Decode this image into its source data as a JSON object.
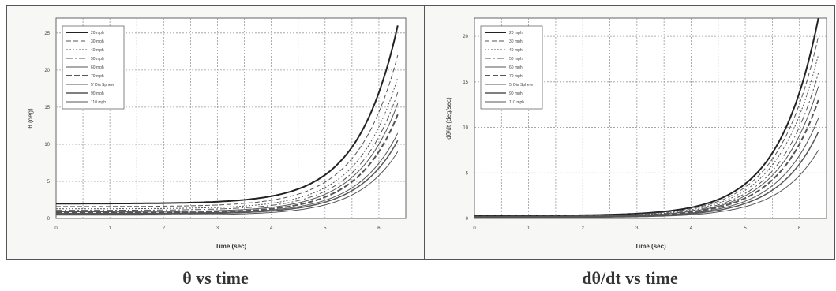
{
  "chart_data": [
    {
      "type": "line",
      "caption": "θ vs time",
      "xlabel": "Time (sec)",
      "ylabel": "θ (deg)",
      "xlim": [
        0,
        6.5
      ],
      "ylim": [
        0,
        27
      ],
      "xticks": [
        0,
        1,
        2,
        3,
        4,
        5,
        6
      ],
      "yticks": [
        0,
        5,
        10,
        15,
        20,
        25
      ],
      "grid": true,
      "legend": "top-left",
      "series": [
        {
          "name": "20 mph",
          "y0": 2.0,
          "yend": 26.0,
          "dash": "",
          "width": 2
        },
        {
          "name": "30 mph",
          "y0": 1.6,
          "yend": 22.0,
          "dash": "6,3",
          "width": 1
        },
        {
          "name": "40 mph",
          "y0": 1.3,
          "yend": 19.0,
          "dash": "2,2",
          "width": 1
        },
        {
          "name": "50 mph",
          "y0": 1.1,
          "yend": 17.0,
          "dash": "8,3,2,3",
          "width": 1
        },
        {
          "name": "60 mph",
          "y0": 0.9,
          "yend": 15.5,
          "dash": "",
          "width": 1
        },
        {
          "name": "70 mph",
          "y0": 0.75,
          "yend": 14.0,
          "dash": "7,3",
          "width": 2
        },
        {
          "name": "5' Dia Sphere",
          "y0": 0.7,
          "yend": 11.5,
          "dash": "",
          "width": 1
        },
        {
          "name": "90 mph",
          "y0": 0.6,
          "yend": 10.5,
          "dash": "",
          "width": 1.5
        },
        {
          "name": "110 mph",
          "y0": 0.45,
          "yend": 9.0,
          "dash": "",
          "width": 1
        }
      ]
    },
    {
      "type": "line",
      "caption": "dθ/dt vs time",
      "xlabel": "Time (sec)",
      "ylabel": "dθ/dt (deg/sec)",
      "xlim": [
        0,
        6.5
      ],
      "ylim": [
        0,
        22
      ],
      "xticks": [
        0,
        1,
        2,
        3,
        4,
        5,
        6
      ],
      "yticks": [
        0,
        5,
        10,
        15,
        20
      ],
      "grid": true,
      "legend": "top-left",
      "series": [
        {
          "name": "20 mph",
          "y0": 0.3,
          "yend": 22.0,
          "dash": "",
          "width": 2
        },
        {
          "name": "30 mph",
          "y0": 0.25,
          "yend": 20.0,
          "dash": "6,3",
          "width": 1
        },
        {
          "name": "40 mph",
          "y0": 0.22,
          "yend": 18.0,
          "dash": "2,2",
          "width": 1
        },
        {
          "name": "50 mph",
          "y0": 0.2,
          "yend": 16.0,
          "dash": "8,3,2,3",
          "width": 1
        },
        {
          "name": "60 mph",
          "y0": 0.18,
          "yend": 14.5,
          "dash": "",
          "width": 1
        },
        {
          "name": "70 mph",
          "y0": 0.16,
          "yend": 13.0,
          "dash": "7,3",
          "width": 2
        },
        {
          "name": "5' Dia Sphere",
          "y0": 0.15,
          "yend": 11.0,
          "dash": "",
          "width": 1
        },
        {
          "name": "90 mph",
          "y0": 0.13,
          "yend": 9.5,
          "dash": "",
          "width": 1.5
        },
        {
          "name": "110 mph",
          "y0": 0.1,
          "yend": 7.5,
          "dash": "",
          "width": 1
        }
      ]
    }
  ]
}
